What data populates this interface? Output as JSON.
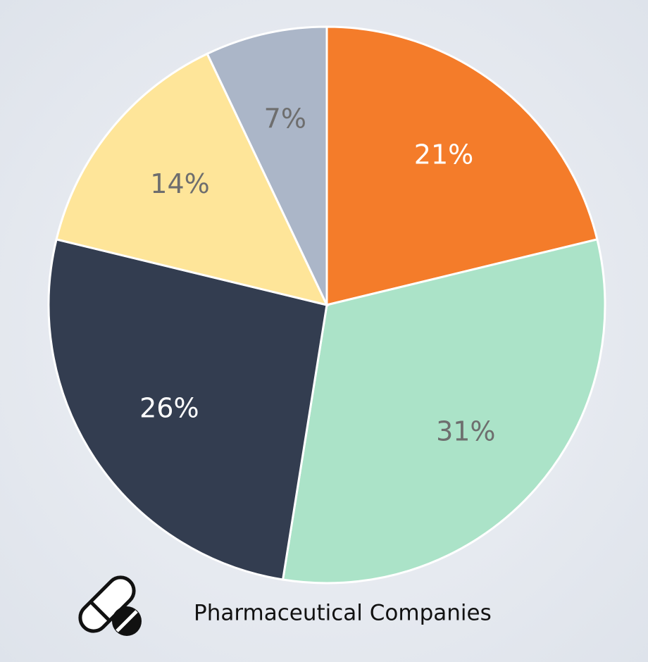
{
  "chart_data": {
    "type": "pie",
    "title": "Pharmaceutical Companies",
    "values": [
      21,
      31,
      26,
      14,
      7
    ],
    "value_labels": [
      "21%",
      "31%",
      "26%",
      "14%",
      "7%"
    ],
    "colors": [
      "#f47c2a",
      "#abe3c8",
      "#333d50",
      "#fee599",
      "#abb6c8"
    ],
    "label_colors": [
      "#ffffff",
      "#6e6e6e",
      "#ffffff",
      "#6e6e6e",
      "#6e6e6e"
    ]
  }
}
